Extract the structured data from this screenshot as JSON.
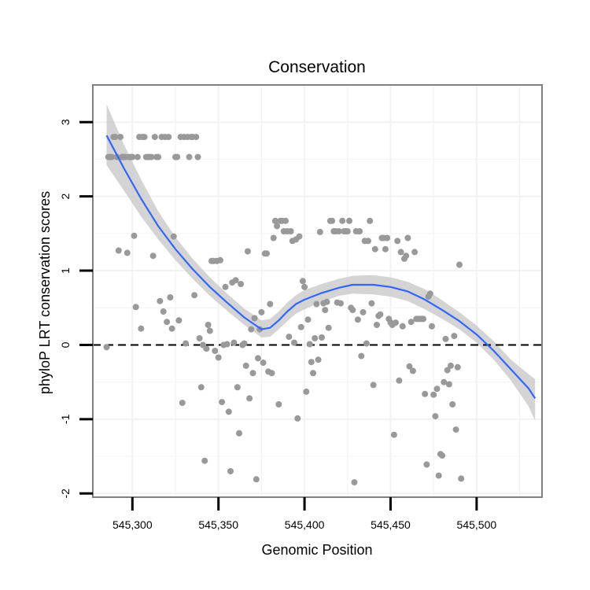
{
  "chart_data": {
    "type": "scatter",
    "title": "Conservation",
    "xlabel": "Genomic Position",
    "ylabel": "phyloP LRT conservation scores",
    "xlim": [
      545277,
      545538
    ],
    "ylim": [
      -2.05,
      3.5
    ],
    "x_ticks": [
      545300,
      545350,
      545400,
      545450,
      545500
    ],
    "x_tick_labels": [
      "545,300",
      "545,350",
      "545,400",
      "545,450",
      "545,500"
    ],
    "y_ticks": [
      -2,
      -1,
      0,
      1,
      2,
      3
    ],
    "y_tick_labels": [
      "-2",
      "-1",
      "0",
      "1",
      "2",
      "3"
    ],
    "grid": true,
    "reference_line": {
      "y": 0,
      "style": "dashed"
    },
    "colors": {
      "points": "#999999",
      "smooth_line": "#3366FF",
      "ribbon": "#cccccc",
      "grid": "#f2f2f2",
      "panel_border": "#808080",
      "reference_line": "#000000"
    },
    "series": [
      {
        "name": "phyloP scores",
        "kind": "points",
        "points": [
          [
            545285,
            -0.03
          ],
          [
            545286,
            2.53
          ],
          [
            545287,
            2.53
          ],
          [
            545288,
            2.53
          ],
          [
            545289,
            2.8
          ],
          [
            545290,
            2.8
          ],
          [
            545291,
            2.53
          ],
          [
            545292,
            1.27
          ],
          [
            545293,
            2.8
          ],
          [
            545294,
            2.53
          ],
          [
            545295,
            2.53
          ],
          [
            545296,
            2.53
          ],
          [
            545297,
            1.24
          ],
          [
            545298,
            2.53
          ],
          [
            545299,
            2.53
          ],
          [
            545300,
            2.53
          ],
          [
            545301,
            1.47
          ],
          [
            545302,
            0.51
          ],
          [
            545303,
            2.53
          ],
          [
            545304,
            2.8
          ],
          [
            545305,
            0.22
          ],
          [
            545306,
            2.8
          ],
          [
            545307,
            2.8
          ],
          [
            545308,
            2.53
          ],
          [
            545309,
            2.53
          ],
          [
            545310,
            2.53
          ],
          [
            545311,
            2.53
          ],
          [
            545312,
            1.2
          ],
          [
            545313,
            2.8
          ],
          [
            545314,
            2.53
          ],
          [
            545315,
            2.53
          ],
          [
            545316,
            0.59
          ],
          [
            545317,
            2.8
          ],
          [
            545318,
            0.45
          ],
          [
            545319,
            2.8
          ],
          [
            545320,
            0.31
          ],
          [
            545321,
            2.8
          ],
          [
            545322,
            0.64
          ],
          [
            545323,
            0.22
          ],
          [
            545324,
            1.46
          ],
          [
            545325,
            2.53
          ],
          [
            545326,
            2.53
          ],
          [
            545327,
            0.33
          ],
          [
            545328,
            2.8
          ],
          [
            545329,
            -0.78
          ],
          [
            545330,
            2.8
          ],
          [
            545331,
            0.02
          ],
          [
            545332,
            2.8
          ],
          [
            545333,
            2.53
          ],
          [
            545334,
            2.8
          ],
          [
            545335,
            2.8
          ],
          [
            545336,
            0.67
          ],
          [
            545337,
            2.8
          ],
          [
            545338,
            2.53
          ],
          [
            545339,
            0.09
          ],
          [
            545340,
            -0.57
          ],
          [
            545341,
            0.0
          ],
          [
            545342,
            -1.56
          ],
          [
            545343,
            -0.05
          ],
          [
            545344,
            0.27
          ],
          [
            545345,
            0.19
          ],
          [
            545346,
            1.13
          ],
          [
            545347,
            1.13
          ],
          [
            545348,
            -0.08
          ],
          [
            545349,
            1.13
          ],
          [
            545350,
            -0.17
          ],
          [
            545351,
            1.14
          ],
          [
            545352,
            -0.77
          ],
          [
            545353,
            0.0
          ],
          [
            545354,
            0.78
          ],
          [
            545355,
            0.01
          ],
          [
            545356,
            -0.9
          ],
          [
            545357,
            -1.7
          ],
          [
            545358,
            0.84
          ],
          [
            545359,
            0.03
          ],
          [
            545360,
            0.87
          ],
          [
            545361,
            -0.57
          ],
          [
            545362,
            -1.19
          ],
          [
            545363,
            0.82
          ],
          [
            545364,
            0.0
          ],
          [
            545365,
            0.02
          ],
          [
            545366,
            -0.28
          ],
          [
            545367,
            1.26
          ],
          [
            545368,
            -0.72
          ],
          [
            545369,
            0.21
          ],
          [
            545370,
            -0.38
          ],
          [
            545371,
            0.36
          ],
          [
            545372,
            -1.81
          ],
          [
            545373,
            -0.18
          ],
          [
            545374,
            0.21
          ],
          [
            545375,
            0.44
          ],
          [
            545376,
            -0.24
          ],
          [
            545377,
            1.23
          ],
          [
            545378,
            1.23
          ],
          [
            545379,
            -0.36
          ],
          [
            545380,
            0.55
          ],
          [
            545381,
            -0.38
          ],
          [
            545382,
            1.44
          ],
          [
            545383,
            1.67
          ],
          [
            545384,
            1.6
          ],
          [
            545385,
            -0.8
          ],
          [
            545386,
            1.67
          ],
          [
            545387,
            1.67
          ],
          [
            545388,
            1.53
          ],
          [
            545389,
            1.67
          ],
          [
            545390,
            1.53
          ],
          [
            545391,
            0.11
          ],
          [
            545392,
            1.53
          ],
          [
            545393,
            1.4
          ],
          [
            545394,
            0.03
          ],
          [
            545395,
            1.42
          ],
          [
            545396,
            -0.99
          ],
          [
            545397,
            1.46
          ],
          [
            545398,
            0.24
          ],
          [
            545399,
            0.86
          ],
          [
            545400,
            0.78
          ],
          [
            545401,
            -0.63
          ],
          [
            545402,
            0.34
          ],
          [
            545403,
            0.01
          ],
          [
            545404,
            -0.23
          ],
          [
            545405,
            -0.38
          ],
          [
            545406,
            0.09
          ],
          [
            545407,
            0.55
          ],
          [
            545408,
            -0.2
          ],
          [
            545409,
            1.52
          ],
          [
            545410,
            0.1
          ],
          [
            545411,
            0.56
          ],
          [
            545412,
            0.47
          ],
          [
            545413,
            0.58
          ],
          [
            545414,
            0.23
          ],
          [
            545415,
            1.67
          ],
          [
            545416,
            1.67
          ],
          [
            545417,
            1.53
          ],
          [
            545418,
            1.53
          ],
          [
            545419,
            0.57
          ],
          [
            545420,
            1.53
          ],
          [
            545421,
            0.56
          ],
          [
            545422,
            1.67
          ],
          [
            545423,
            1.53
          ],
          [
            545424,
            1.53
          ],
          [
            545425,
            1.53
          ],
          [
            545426,
            1.67
          ],
          [
            545427,
            0.5
          ],
          [
            545428,
            0.47
          ],
          [
            545429,
            -1.85
          ],
          [
            545430,
            1.53
          ],
          [
            545431,
            0.34
          ],
          [
            545432,
            1.53
          ],
          [
            545433,
            -0.15
          ],
          [
            545434,
            0.44
          ],
          [
            545435,
            1.4
          ],
          [
            545436,
            0.02
          ],
          [
            545437,
            1.4
          ],
          [
            545438,
            1.67
          ],
          [
            545439,
            0.56
          ],
          [
            545440,
            -0.54
          ],
          [
            545441,
            1.29
          ],
          [
            545442,
            0.27
          ],
          [
            545443,
            0.39
          ],
          [
            545444,
            0.41
          ],
          [
            545445,
            1.44
          ],
          [
            545446,
            1.44
          ],
          [
            545447,
            1.29
          ],
          [
            545448,
            1.44
          ],
          [
            545449,
            0.35
          ],
          [
            545450,
            0.3
          ],
          [
            545451,
            0.27
          ],
          [
            545452,
            -1.21
          ],
          [
            545453,
            0.3
          ],
          [
            545454,
            1.4
          ],
          [
            545455,
            -0.48
          ],
          [
            545456,
            1.25
          ],
          [
            545457,
            0.25
          ],
          [
            545458,
            1.16
          ],
          [
            545459,
            1.2
          ],
          [
            545460,
            1.44
          ],
          [
            545461,
            -0.29
          ],
          [
            545462,
            0.31
          ],
          [
            545463,
            -0.35
          ],
          [
            545464,
            1.25
          ],
          [
            545465,
            0.35
          ],
          [
            545466,
            0.35
          ],
          [
            545467,
            0.35
          ],
          [
            545468,
            0.35
          ],
          [
            545469,
            0.35
          ],
          [
            545470,
            -0.66
          ],
          [
            545471,
            -1.61
          ],
          [
            545472,
            0.65
          ],
          [
            545473,
            0.69
          ],
          [
            545474,
            0.25
          ],
          [
            545475,
            -0.67
          ],
          [
            545476,
            -0.96
          ],
          [
            545477,
            -0.59
          ],
          [
            545478,
            -1.76
          ],
          [
            545479,
            -1.47
          ],
          [
            545480,
            -1.49
          ],
          [
            545481,
            -0.5
          ],
          [
            545482,
            0.08
          ],
          [
            545483,
            -0.34
          ],
          [
            545484,
            -0.53
          ],
          [
            545485,
            -0.28
          ],
          [
            545486,
            -0.8
          ],
          [
            545487,
            0.12
          ],
          [
            545488,
            -1.14
          ],
          [
            545489,
            -0.3
          ],
          [
            545490,
            1.08
          ],
          [
            545491,
            -1.8
          ]
        ]
      },
      {
        "name": "smoothed fit",
        "kind": "line",
        "points": [
          [
            545285,
            2.82
          ],
          [
            545295,
            2.38
          ],
          [
            545305,
            1.97
          ],
          [
            545315,
            1.6
          ],
          [
            545325,
            1.29
          ],
          [
            545335,
            1.02
          ],
          [
            545345,
            0.78
          ],
          [
            545355,
            0.57
          ],
          [
            545365,
            0.37
          ],
          [
            545375,
            0.21
          ],
          [
            545380,
            0.23
          ],
          [
            545385,
            0.33
          ],
          [
            545390,
            0.45
          ],
          [
            545395,
            0.55
          ],
          [
            545400,
            0.61
          ],
          [
            545410,
            0.7
          ],
          [
            545420,
            0.77
          ],
          [
            545428,
            0.81
          ],
          [
            545440,
            0.81
          ],
          [
            545450,
            0.78
          ],
          [
            545460,
            0.72
          ],
          [
            545470,
            0.61
          ],
          [
            545480,
            0.47
          ],
          [
            545490,
            0.32
          ],
          [
            545500,
            0.14
          ],
          [
            545510,
            -0.08
          ],
          [
            545520,
            -0.33
          ],
          [
            545530,
            -0.58
          ],
          [
            545534,
            -0.72
          ]
        ]
      },
      {
        "name": "confidence band",
        "kind": "band",
        "x": [
          545285,
          545295,
          545305,
          545315,
          545325,
          545335,
          545345,
          545355,
          545365,
          545375,
          545380,
          545385,
          545390,
          545395,
          545400,
          545410,
          545420,
          545428,
          545440,
          545450,
          545460,
          545470,
          545480,
          545490,
          545500,
          545510,
          545520,
          545530,
          545534
        ],
        "lower": [
          2.42,
          2.08,
          1.73,
          1.42,
          1.14,
          0.89,
          0.66,
          0.46,
          0.27,
          0.1,
          0.11,
          0.21,
          0.32,
          0.42,
          0.48,
          0.58,
          0.66,
          0.69,
          0.68,
          0.65,
          0.59,
          0.48,
          0.35,
          0.21,
          0.03,
          -0.2,
          -0.48,
          -0.82,
          -1.02
        ],
        "upper": [
          3.24,
          2.7,
          2.23,
          1.8,
          1.45,
          1.16,
          0.91,
          0.69,
          0.49,
          0.33,
          0.35,
          0.45,
          0.57,
          0.67,
          0.74,
          0.82,
          0.89,
          0.93,
          0.94,
          0.91,
          0.85,
          0.75,
          0.6,
          0.44,
          0.26,
          0.05,
          -0.2,
          -0.39,
          -0.46
        ]
      }
    ]
  }
}
